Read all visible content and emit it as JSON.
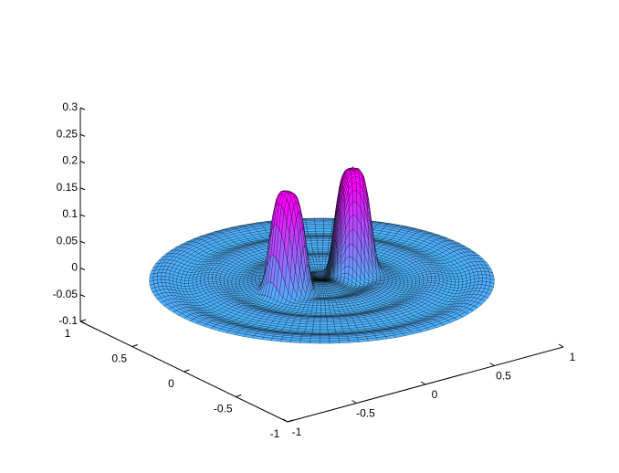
{
  "chart_data": {
    "type": "surface3d",
    "xlim": [
      -1,
      1
    ],
    "xticks": [
      -1,
      -0.5,
      0,
      0.5,
      1
    ],
    "ylim": [
      -1,
      1
    ],
    "yticks": [
      -1,
      -0.5,
      0,
      0.5,
      1
    ],
    "zlim": [
      -0.1,
      0.3
    ],
    "zticks": [
      -0.1,
      -0.05,
      0,
      0.05,
      0.1,
      0.15,
      0.2,
      0.25,
      0.3
    ],
    "colormap": [
      "#00ffff",
      "#ff00ff"
    ],
    "edge_color": "#000000",
    "peaks": [
      {
        "x": -0.27,
        "y": -0.03,
        "z": 0.19
      },
      {
        "x": 0.21,
        "y": -0.02,
        "z": 0.2
      }
    ]
  }
}
